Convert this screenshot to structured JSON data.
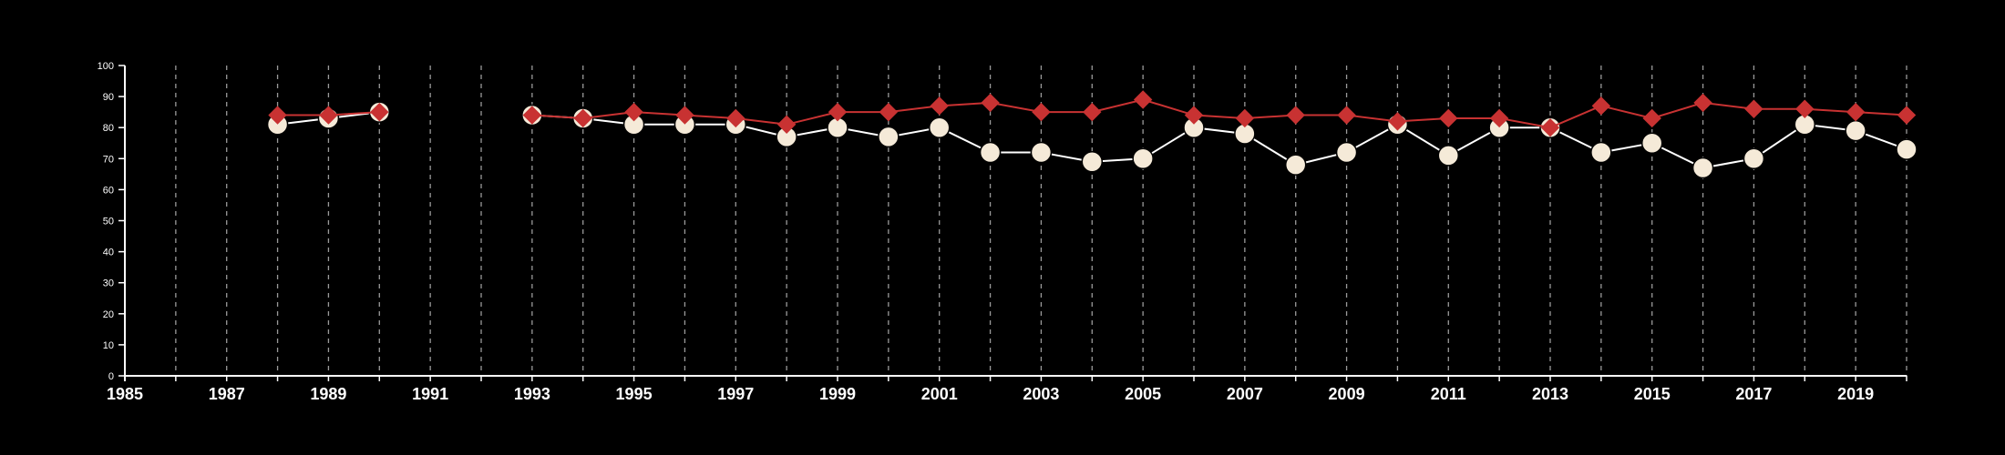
{
  "chart_data": {
    "type": "line",
    "title": "",
    "xlabel": "",
    "ylabel": "",
    "xlim": [
      1985,
      2020
    ],
    "ylim": [
      0,
      100
    ],
    "y_ticks": [
      0,
      10,
      20,
      30,
      40,
      50,
      60,
      70,
      80,
      90,
      100
    ],
    "x_ticks": [
      1985,
      1987,
      1989,
      1991,
      1993,
      1995,
      1997,
      1999,
      2001,
      2003,
      2005,
      2007,
      2009,
      2011,
      2013,
      2015,
      2017,
      2019
    ],
    "grid": "vertical-dashed",
    "background": "#000000",
    "axis_color": "#ffffff",
    "x": [
      1985,
      1986,
      1987,
      1988,
      1989,
      1990,
      1991,
      1992,
      1993,
      1994,
      1995,
      1996,
      1997,
      1998,
      1999,
      2000,
      2001,
      2002,
      2003,
      2004,
      2005,
      2006,
      2007,
      2008,
      2009,
      2010,
      2011,
      2012,
      2013,
      2014,
      2015,
      2016,
      2017,
      2018,
      2019,
      2020
    ],
    "series": [
      {
        "marker": "circle",
        "color": "#f5ead8",
        "line_color": "#ffffff",
        "values": [
          null,
          null,
          null,
          81,
          83,
          85,
          null,
          null,
          84,
          83,
          81,
          81,
          81,
          77,
          80,
          77,
          80,
          72,
          72,
          69,
          70,
          80,
          78,
          68,
          72,
          81,
          71,
          80,
          80,
          72,
          75,
          67,
          70,
          81,
          79,
          73
        ]
      },
      {
        "marker": "diamond",
        "color": "#c83232",
        "line_color": "#c83232",
        "values": [
          null,
          null,
          null,
          84,
          84,
          85,
          null,
          null,
          84,
          83,
          85,
          84,
          83,
          81,
          85,
          85,
          87,
          88,
          85,
          85,
          89,
          84,
          83,
          84,
          84,
          82,
          83,
          83,
          80,
          87,
          83,
          88,
          86,
          86,
          85,
          84
        ]
      }
    ]
  }
}
